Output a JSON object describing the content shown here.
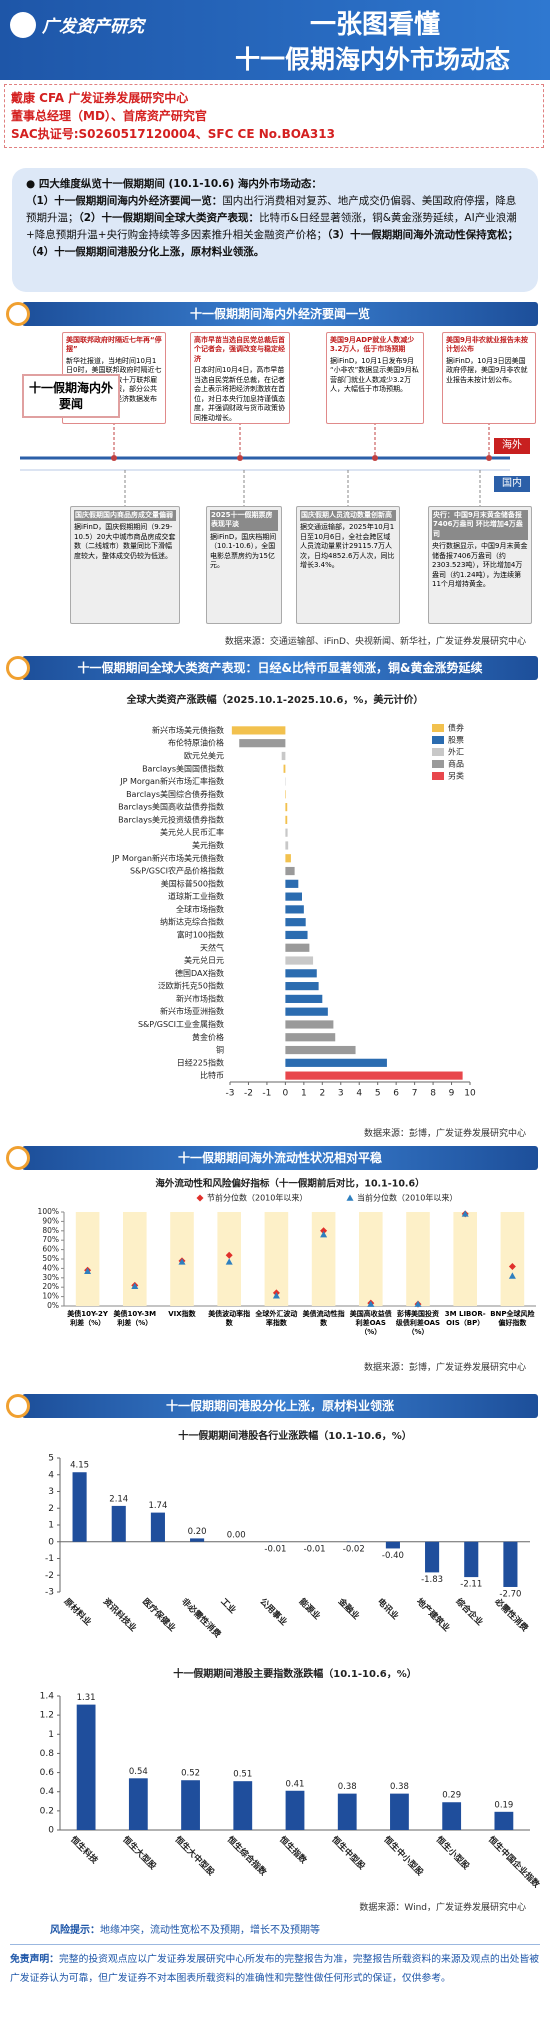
{
  "header": {
    "brand": "广发资产研究",
    "title_line1": "一张图看懂",
    "title_line2": "十一假期海内外市场动态"
  },
  "authors": [
    "戴康 CFA 广发证券发展研究中心",
    "董事总经理（MD）、首席资产研究官",
    "SAC执证号:S0260517120004、SFC CE No.BOA313"
  ],
  "summary": {
    "heading": "四大维度纵览十一假期期间 (10.1-10.6) 海内外市场动态：",
    "items": [
      {
        "bold": "（1）十一假期期间海内外经济要闻一览：",
        "text": "国内出行消费相对复苏、地产成交仍偏弱、美国政府停摆，降息预期升温；"
      },
      {
        "bold": "（2）十一假期期间全球大类资产表现：",
        "text": "比特币&日经显著领涨，铜&黄金涨势延续，AI产业浪潮+降息预期升温+央行购金持续等多因素推升相关金融资产价格；"
      },
      {
        "bold": "（3）十一假期期间海外流动性保持宽松；"
      },
      {
        "bold": "（4）十一假期期间港股分化上涨，原材料业领涨。"
      }
    ]
  },
  "sections": [
    "十一假期期间海内外经济要闻一览",
    "十一假期期间全球大类资产表现：日经&比特币显著领涨，铜&黄金涨势延续",
    "十一假期期间海外流动性状况相对平稳",
    "十一假期期间港股分化上涨，原材料业领涨"
  ],
  "timeline": {
    "label": "十一假期海内外要闻",
    "overseas_tag": "海外",
    "domestic_tag": "国内",
    "overseas": [
      {
        "title": "美国联邦政府时隔近七年再“停摆”",
        "body": "新华社报道，当地时间10月1日0时，美国联邦政府时隔近七年再度“停摆”，数十万联邦雇员将被迫无薪休假，部分公共服务暂停，美国经济数据发布将受到影响。"
      },
      {
        "title": "高市早苗当选自民党总裁后首个记者会，强调改变与稳定经济",
        "body": "日本时间10月4日，高市早苗当选自民党新任总裁，在记者会上表示将把经济刺激放在首位，对日本央行加息持谨慎态度，并强调财政与货币政策协同推动增长。"
      },
      {
        "title": "美国9月ADP就业人数减少3.2万人，低于市场预期",
        "body": "据iFinD，10月1日发布9月“小非农”数据显示美国9月私营部门就业人数减少3.2万人，大幅低于市场预期。"
      },
      {
        "title": "美国9月非农就业报告未按计划公布",
        "body": "据iFinD，10月3日因美国政府停摆，美国9月非农就业报告未按计划公布。"
      }
    ],
    "domestic": [
      {
        "title": "国庆假期国内商品房成交量偏弱",
        "body": "据iFinD，国庆假期期间（9.29-10.5）20大中城市商品房成交套数（二线城市）数量同比下滑幅度较大，整体成交仍较为低迷。"
      },
      {
        "title": "2025十一假期票房表现平淡",
        "body": "据iFinD，国庆档期间（10.1-10.6），全国电影总票房约为15亿元。"
      },
      {
        "title": "国庆假期人员流动数量创新高",
        "body": "据交通运输部，2025年10月1日至10月6日，全社会跨区域人员流动量累计29115.7万人次，日均4852.6万人次，同比增长3.4%。"
      },
      {
        "title": "央行：中国9月末黄金储备报7406万盎司 环比增加4万盎司",
        "body": "央行数据显示，中国9月末黄金储备报7406万盎司（约2303.523吨），环比增加4万盎司（约1.24吨），为连续第11个月增持黄金。"
      }
    ]
  },
  "sources": [
    "数据来源：交通运输部、iFinD、央视新闻、新华社，广发证券发展研究中心",
    "数据来源：彭博，广发证券发展研究中心",
    "数据来源：彭博，广发证券发展研究中心",
    "数据来源：Wind，广发证券发展研究中心"
  ],
  "chart_data": [
    {
      "type": "hbar",
      "title": "全球大类资产涨跌幅（2025.10.1-2025.10.6，%，美元计价）",
      "legend": [
        {
          "name": "债券",
          "color": "#f2c14e"
        },
        {
          "name": "股票",
          "color": "#2b6cb0"
        },
        {
          "name": "外汇",
          "color": "#c8c8c8"
        },
        {
          "name": "商品",
          "color": "#9a9a9a"
        },
        {
          "name": "另类",
          "color": "#e8474c"
        }
      ],
      "categories": [
        "新兴市场美元债指数",
        "布伦特原油价格",
        "欧元兑美元",
        "Barclays美国国债指数",
        "JP Morgan新兴市场汇率指数",
        "Barclays美国综合债券指数",
        "Barclays美国高收益债券指数",
        "Barclays美元投资级债券指数",
        "美元兑人民币汇率",
        "美元指数",
        "JP Morgan新兴市场美元债指数",
        "S&P/GSCI农产品价格指数",
        "美国标普500指数",
        "道琼斯工业指数",
        "全球市场指数",
        "纳斯达克综合指数",
        "富时100指数",
        "天然气",
        "美元兑日元",
        "德国DAX指数",
        "泛欧斯托克50指数",
        "新兴市场指数",
        "新兴市场亚洲指数",
        "S&P/GSCI工业金属指数",
        "黄金价格",
        "铜",
        "日经225指数",
        "比特币"
      ],
      "values": [
        -2.9,
        -2.5,
        -0.2,
        -0.1,
        0.02,
        0.03,
        0.1,
        0.1,
        0.12,
        0.15,
        0.3,
        0.5,
        0.7,
        0.9,
        1.0,
        1.1,
        1.2,
        1.3,
        1.5,
        1.7,
        1.8,
        2.0,
        2.3,
        2.6,
        2.7,
        3.8,
        5.5,
        9.6
      ],
      "colors": [
        "#f2c14e",
        "#9a9a9a",
        "#c8c8c8",
        "#f2c14e",
        "#c8c8c8",
        "#f2c14e",
        "#f2c14e",
        "#f2c14e",
        "#c8c8c8",
        "#c8c8c8",
        "#f2c14e",
        "#9a9a9a",
        "#2b6cb0",
        "#2b6cb0",
        "#2b6cb0",
        "#2b6cb0",
        "#2b6cb0",
        "#9a9a9a",
        "#c8c8c8",
        "#2b6cb0",
        "#2b6cb0",
        "#2b6cb0",
        "#2b6cb0",
        "#9a9a9a",
        "#9a9a9a",
        "#9a9a9a",
        "#2b6cb0",
        "#e8474c"
      ],
      "xlim": [
        -3,
        10
      ],
      "xticks": [
        -3,
        -2,
        -1,
        0,
        1,
        2,
        3,
        4,
        5,
        6,
        7,
        8,
        9,
        10
      ]
    },
    {
      "type": "dot",
      "title": "海外流动性和风险偏好指标（十一假期前后对比，10.1-10.6）",
      "categories": [
        "美债10Y-2Y利差（%）",
        "美债10Y-3M利差（%）",
        "VIX指数",
        "美债波动率指数",
        "全球外汇波动率指数",
        "美债流动性指数",
        "美国高收益债利差OAS（%）",
        "彭博美国投资级债利差OAS（%）",
        "3M LIBOR-OIS（BP）",
        "BNP全球风险偏好指数"
      ],
      "series": [
        {
          "name": "节前分位数（2010年以来）",
          "color": "#e0302b",
          "marker": "diamond",
          "values": [
            38,
            22,
            48,
            54,
            14,
            80,
            3,
            2,
            98,
            42
          ]
        },
        {
          "name": "当前分位数（2010年以来）",
          "color": "#2e7fbf",
          "marker": "triangle",
          "values": [
            37,
            21,
            47,
            47,
            11,
            76,
            2,
            2,
            98,
            32
          ]
        }
      ],
      "ylim": [
        0,
        100
      ],
      "yticks": [
        {
          "value": 0,
          "label": "0%"
        },
        {
          "value": 10,
          "label": "10%"
        },
        {
          "value": 20,
          "label": "20%"
        },
        {
          "value": 30,
          "label": "30%"
        },
        {
          "value": 40,
          "label": "40%"
        },
        {
          "value": 50,
          "label": "50%"
        },
        {
          "value": 60,
          "label": "60%"
        },
        {
          "value": 70,
          "label": "70%"
        },
        {
          "value": 80,
          "label": "80%"
        },
        {
          "value": 90,
          "label": "90%"
        },
        {
          "value": 100,
          "label": "100%"
        }
      ]
    },
    {
      "type": "bar",
      "title": "十一假期期间港股各行业涨跌幅（10.1-10.6，%）",
      "color": "#1f4e9c",
      "categories": [
        "原材料业",
        "资讯科技业",
        "医疗保健业",
        "非必需性消费",
        "工业",
        "公用事业",
        "能源业",
        "金融业",
        "电讯业",
        "地产建筑业",
        "综合企业",
        "必需性消费"
      ],
      "values": [
        4.15,
        2.14,
        1.74,
        0.2,
        0,
        -0.01,
        -0.01,
        -0.02,
        -0.4,
        -1.83,
        -2.11,
        -2.7
      ],
      "value_labels": [
        "4.15",
        "2.14",
        "1.74",
        "0.20",
        "0.00",
        "-0.01",
        "-0.01",
        "-0.02",
        "-0.40",
        "-1.83",
        "-2.11",
        "-2.70"
      ],
      "ylim": [
        -3,
        5
      ],
      "yticks": [
        -3,
        -2,
        -1,
        0,
        1,
        2,
        3,
        4,
        5
      ]
    },
    {
      "type": "bar",
      "title": "十一假期期间港股主要指数涨跌幅（10.1-10.6，%）",
      "color": "#1f4e9c",
      "categories": [
        "恒生科技",
        "恒生大型股",
        "恒生大中型股",
        "恒生综合指数",
        "恒生指数",
        "恒生中型股",
        "恒生中小型股",
        "恒生小型股",
        "恒生中国企业指数"
      ],
      "values": [
        1.31,
        0.54,
        0.52,
        0.51,
        0.41,
        0.38,
        0.38,
        0.29,
        0.19
      ],
      "value_labels": [
        "1.31",
        "0.54",
        "0.52",
        "0.51",
        "0.41",
        "0.38",
        "0.38",
        "0.29",
        "0.19"
      ],
      "ylim": [
        0,
        1.4
      ],
      "yticks": [
        0,
        0.2,
        0.4,
        0.6,
        0.8,
        1,
        1.2,
        1.4
      ]
    }
  ],
  "footer": {
    "risk_label": "风险提示：",
    "risk_text": "地缘冲突，流动性宽松不及预期，增长不及预期等",
    "disclaimer_label": "免责声明：",
    "disclaimer_text": "完整的投资观点应以广发证券发展研究中心所发布的完整报告为准，完整报告所载资料的来源及观点的出处皆被广发证券认为可靠，但广发证券不对本图表所载资料的准确性和完整性做任何形式的保证，仅供参考。"
  }
}
